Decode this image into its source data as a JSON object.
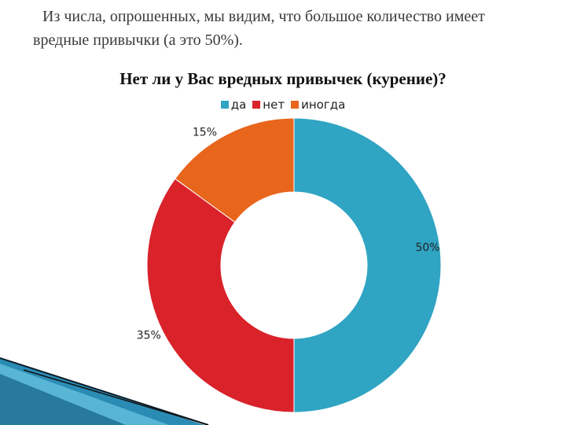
{
  "intro_text": "Из числа, опрошенных, мы видим, что большое количество имеет вредные привычки (а это 50%).",
  "chart_data": {
    "type": "pie",
    "variant": "donut",
    "title": "Нет ли у Вас вредных привычек (курение)?",
    "legend_position": "top",
    "categories": [
      "да",
      "нет",
      "иногда"
    ],
    "values": [
      50,
      35,
      15
    ],
    "labels": [
      "50%",
      "35%",
      "15%"
    ],
    "colors": [
      "#2fa4c3",
      "#d9222a",
      "#e8651c"
    ]
  }
}
